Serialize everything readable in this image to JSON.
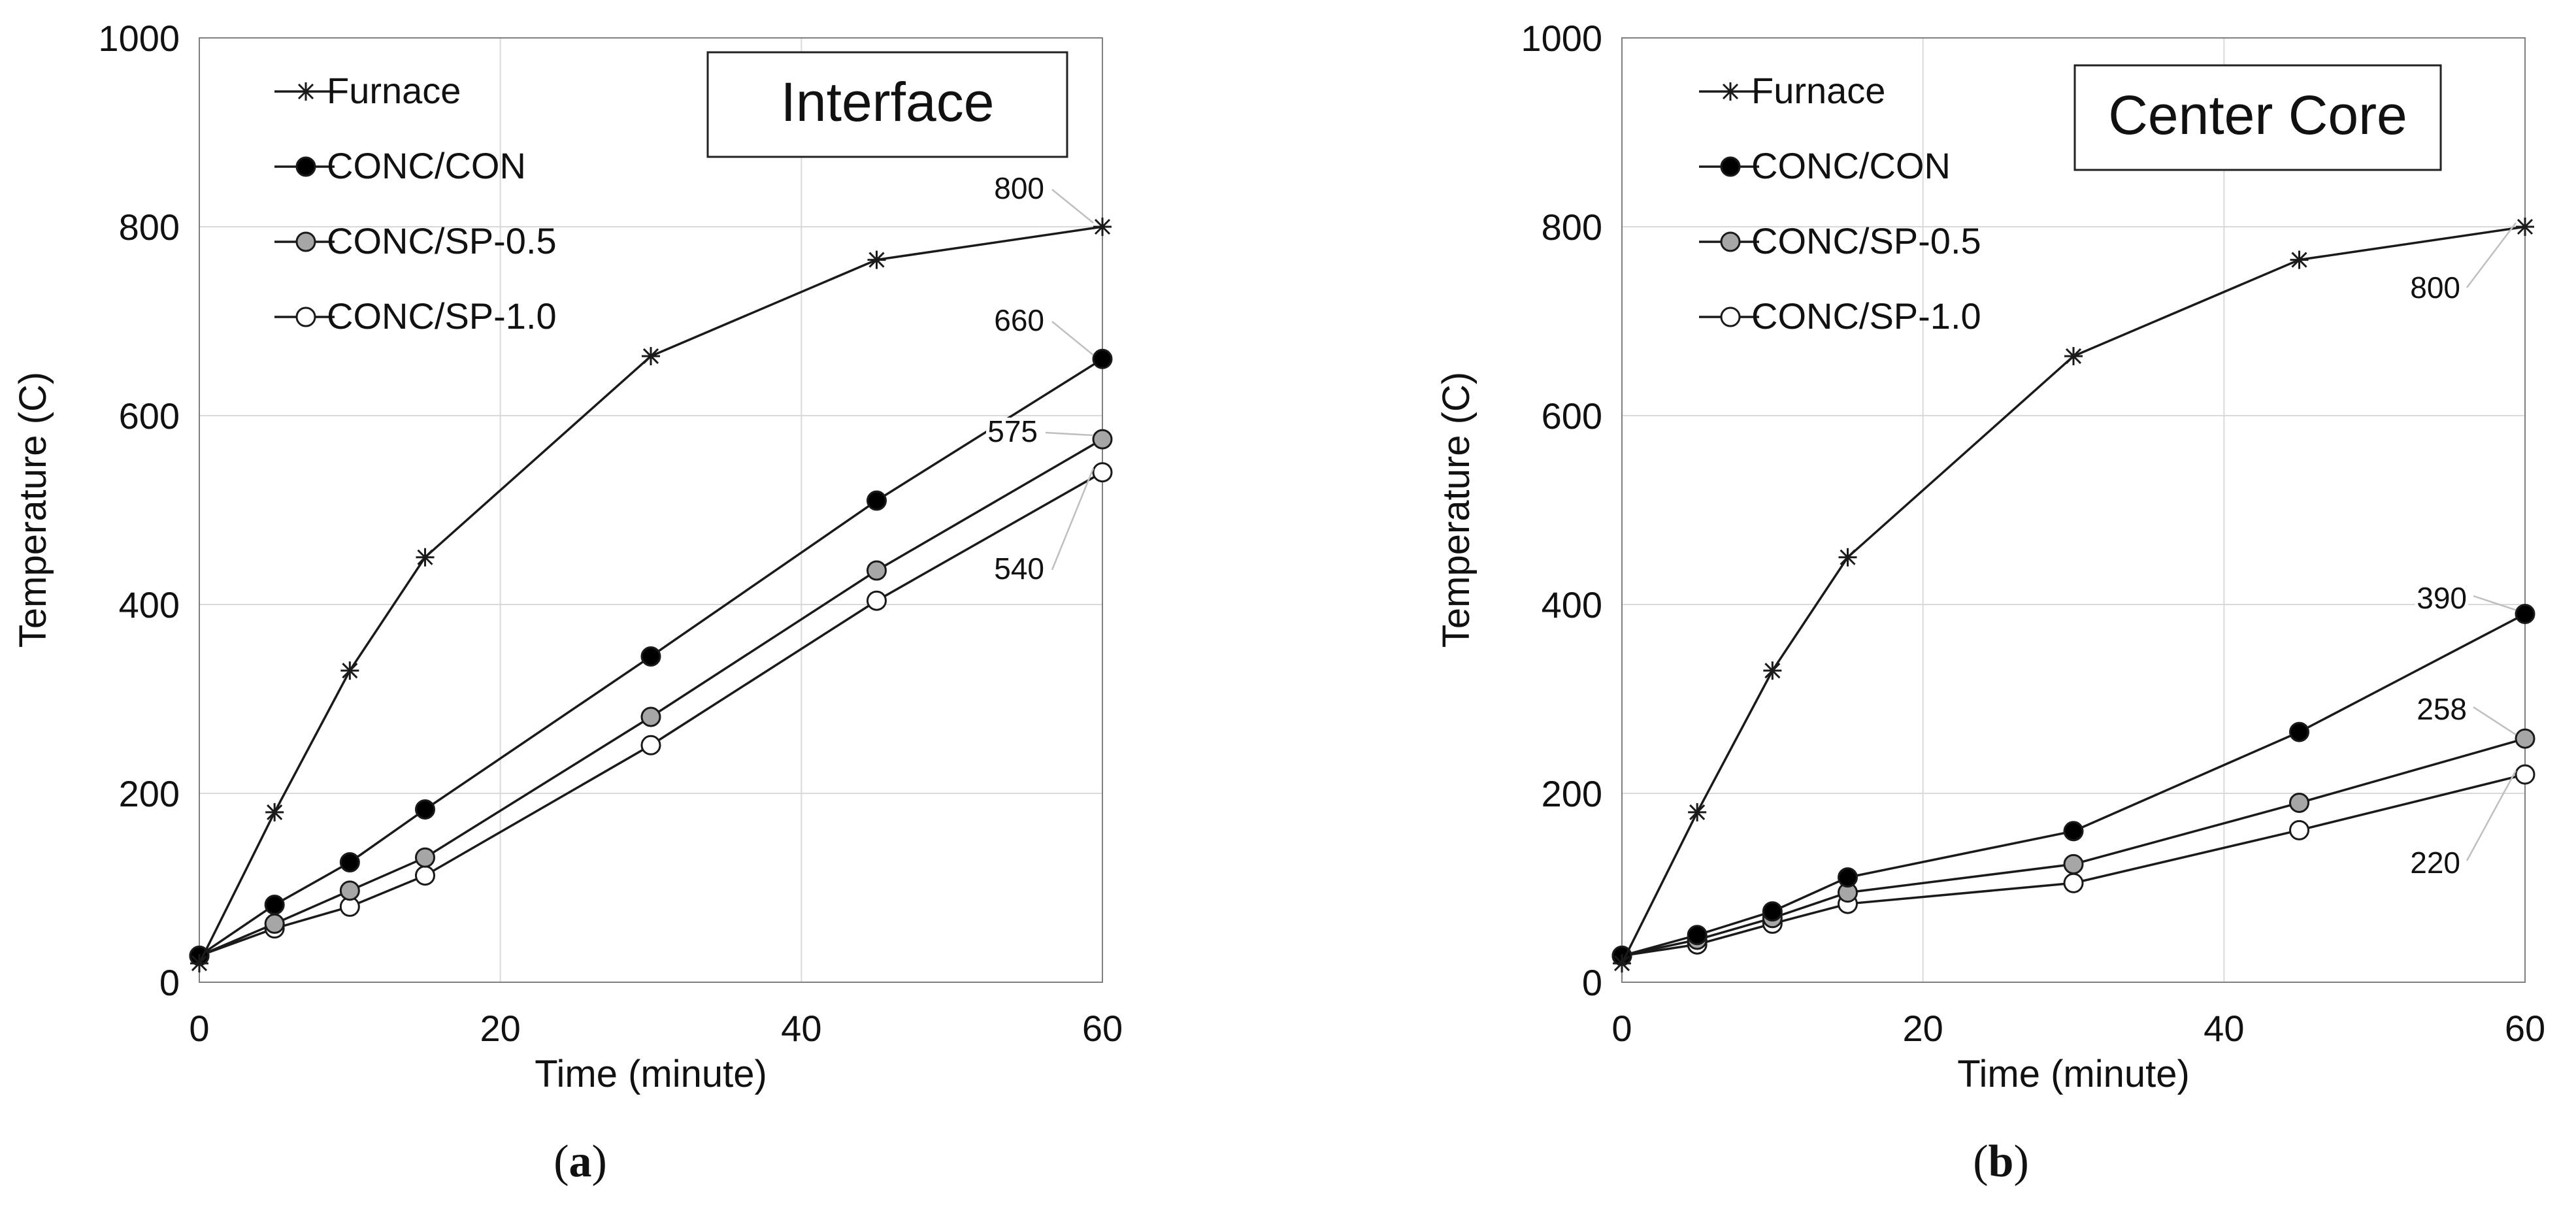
{
  "chart_data": [
    {
      "type": "line",
      "panel_label": "a",
      "title": "Interface",
      "xlabel": "Time (minute)",
      "ylabel": "Temperature (C)",
      "xlim": [
        0,
        60
      ],
      "ylim": [
        0,
        1000
      ],
      "xticks": [
        0,
        20,
        40,
        60
      ],
      "yticks": [
        0,
        200,
        400,
        600,
        800,
        1000
      ],
      "grid": true,
      "legend_position": "top-left",
      "x": [
        0,
        5,
        10,
        15,
        30,
        45,
        60
      ],
      "series": [
        {
          "name": "Furnace",
          "marker": "star",
          "values": [
            20,
            180,
            330,
            450,
            663,
            765,
            800
          ]
        },
        {
          "name": "CONC/CON",
          "marker": "filled-black",
          "values": [
            28,
            82,
            127,
            183,
            345,
            510,
            660
          ]
        },
        {
          "name": "CONC/SP-0.5",
          "marker": "filled-gray",
          "values": [
            28,
            62,
            97,
            132,
            281,
            436,
            575
          ]
        },
        {
          "name": "CONC/SP-1.0",
          "marker": "open",
          "values": [
            28,
            57,
            80,
            113,
            251,
            404,
            540
          ]
        }
      ],
      "annotations": [
        {
          "text": "800",
          "x": 60,
          "y": 800
        },
        {
          "text": "660",
          "x": 60,
          "y": 660
        },
        {
          "text": "575",
          "x": 60,
          "y": 575
        },
        {
          "text": "540",
          "x": 60,
          "y": 540
        }
      ]
    },
    {
      "type": "line",
      "panel_label": "b",
      "title": "Center Core",
      "xlabel": "Time (minute)",
      "ylabel": "Temperature (C)",
      "xlim": [
        0,
        60
      ],
      "ylim": [
        0,
        1000
      ],
      "xticks": [
        0,
        20,
        40,
        60
      ],
      "yticks": [
        0,
        200,
        400,
        600,
        800,
        1000
      ],
      "grid": true,
      "legend_position": "top-left",
      "x": [
        0,
        5,
        10,
        15,
        30,
        45,
        60
      ],
      "series": [
        {
          "name": "Furnace",
          "marker": "star",
          "values": [
            20,
            180,
            330,
            450,
            663,
            765,
            800
          ]
        },
        {
          "name": "CONC/CON",
          "marker": "filled-black",
          "values": [
            28,
            50,
            75,
            111,
            160,
            265,
            390
          ]
        },
        {
          "name": "CONC/SP-0.5",
          "marker": "filled-gray",
          "values": [
            28,
            45,
            68,
            95,
            125,
            190,
            258
          ]
        },
        {
          "name": "CONC/SP-1.0",
          "marker": "open",
          "values": [
            28,
            40,
            62,
            83,
            105,
            161,
            220
          ]
        }
      ],
      "annotations": [
        {
          "text": "800",
          "x": 60,
          "y": 800
        },
        {
          "text": "390",
          "x": 60,
          "y": 390
        },
        {
          "text": "258",
          "x": 60,
          "y": 258
        },
        {
          "text": "220",
          "x": 60,
          "y": 220
        }
      ]
    }
  ],
  "colors": {
    "line": "#1a1a1a",
    "grid": "#d9d9d9",
    "marker_black": "#000000",
    "marker_gray": "#a6a6a6",
    "marker_open": "#ffffff"
  }
}
